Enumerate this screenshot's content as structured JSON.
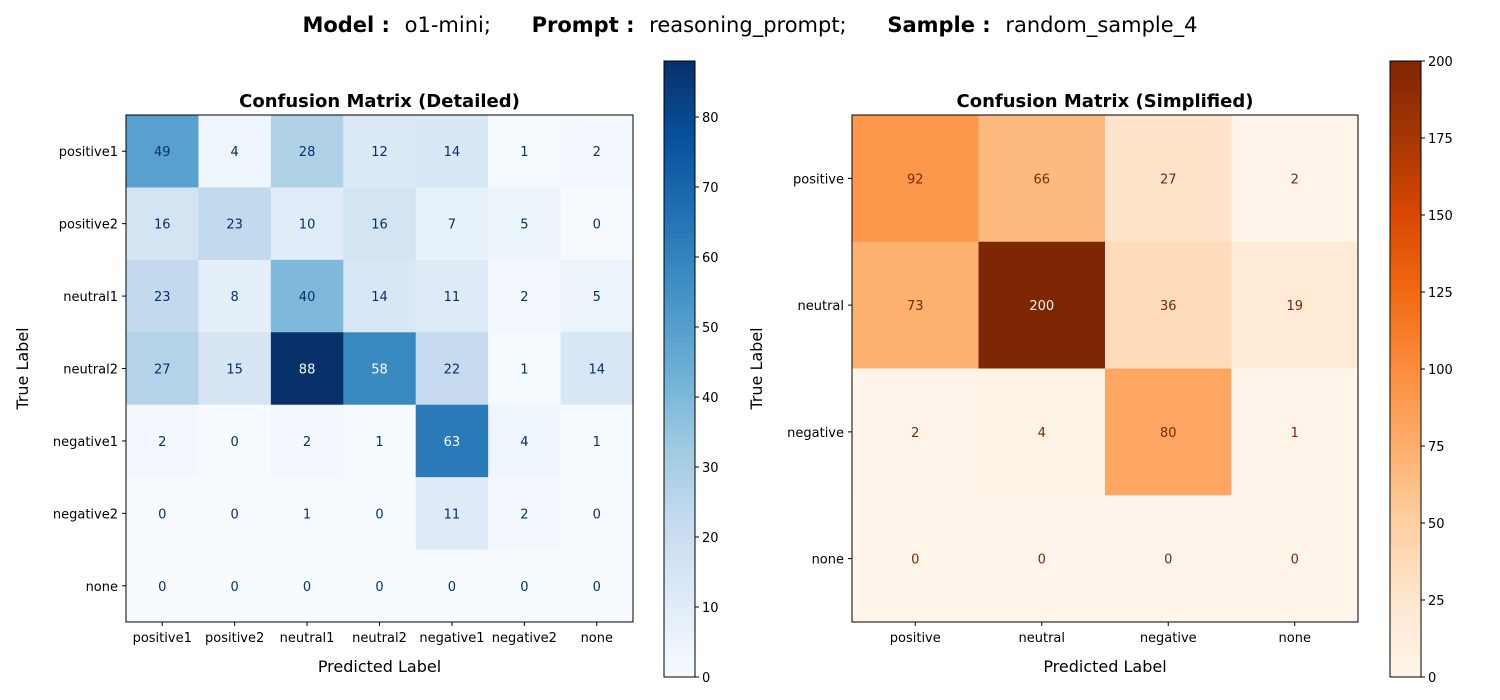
{
  "figure": {
    "suptitle": {
      "model_key": "Model :",
      "model_val": "o1-mini;",
      "prompt_key": "Prompt :",
      "prompt_val": "reasoning_prompt;",
      "sample_key": "Sample :",
      "sample_val": "random_sample_4"
    }
  },
  "chart_data": [
    {
      "type": "heatmap",
      "title": "Confusion Matrix (Detailed)",
      "xlabel": "Predicted Label",
      "ylabel": "True Label",
      "x_categories": [
        "positive1",
        "positive2",
        "neutral1",
        "neutral2",
        "negative1",
        "negative2",
        "none"
      ],
      "y_categories": [
        "positive1",
        "positive2",
        "neutral1",
        "neutral2",
        "negative1",
        "negative2",
        "none"
      ],
      "values": [
        [
          49,
          4,
          28,
          12,
          14,
          1,
          2
        ],
        [
          16,
          23,
          10,
          16,
          7,
          5,
          0
        ],
        [
          23,
          8,
          40,
          14,
          11,
          2,
          5
        ],
        [
          27,
          15,
          88,
          58,
          22,
          1,
          14
        ],
        [
          2,
          0,
          2,
          1,
          63,
          4,
          1
        ],
        [
          0,
          0,
          1,
          0,
          11,
          2,
          0
        ],
        [
          0,
          0,
          0,
          0,
          0,
          0,
          0
        ]
      ],
      "colormap": "Blues",
      "colors": {
        "low": "#f7fbff",
        "high": "#08306b"
      },
      "vrange": [
        0,
        88
      ],
      "colorbar_ticks": [
        0,
        10,
        20,
        30,
        40,
        50,
        60,
        70,
        80
      ],
      "grid": false
    },
    {
      "type": "heatmap",
      "title": "Confusion Matrix (Simplified)",
      "xlabel": "Predicted Label",
      "ylabel": "True Label",
      "x_categories": [
        "positive",
        "neutral",
        "negative",
        "none"
      ],
      "y_categories": [
        "positive",
        "neutral",
        "negative",
        "none"
      ],
      "values": [
        [
          92,
          66,
          27,
          2
        ],
        [
          73,
          200,
          36,
          19
        ],
        [
          2,
          4,
          80,
          1
        ],
        [
          0,
          0,
          0,
          0
        ]
      ],
      "colormap": "Oranges",
      "colors": {
        "low": "#fff5eb",
        "high": "#7f2704"
      },
      "vrange": [
        0,
        200
      ],
      "colorbar_ticks": [
        0,
        25,
        50,
        75,
        100,
        125,
        150,
        175,
        200
      ],
      "grid": false
    }
  ]
}
